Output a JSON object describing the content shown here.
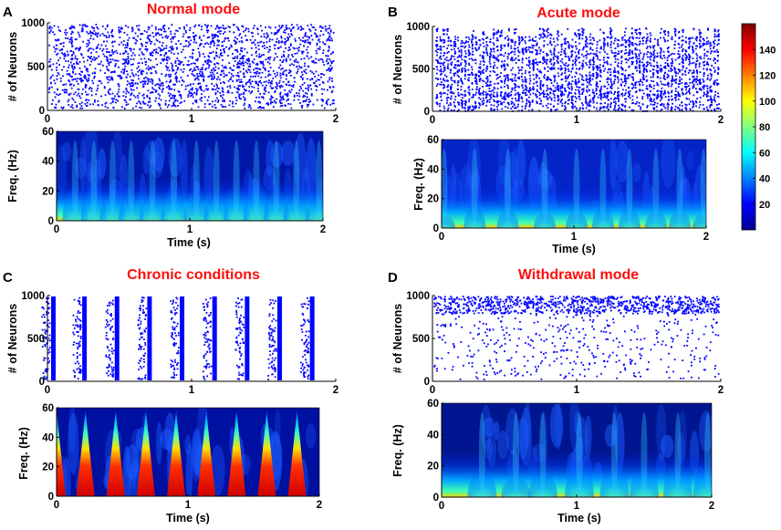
{
  "panels": [
    {
      "id": "A",
      "title": "Normal mode"
    },
    {
      "id": "B",
      "title": "Acute mode"
    },
    {
      "id": "C",
      "title": "Chronic conditions"
    },
    {
      "id": "D",
      "title": "Withdrawal mode"
    }
  ],
  "labels": {
    "raster_ylabel": "# of Neurons",
    "spectro_ylabel": "Freq. (Hz)",
    "xlabel": "Time (s)"
  },
  "colors": {
    "title": "#ff0d0d",
    "spike": "#0000ff",
    "axis": "#000000"
  },
  "chart_data": [
    {
      "type": "scatter",
      "panel": "A",
      "name": "raster",
      "x_range": [
        0,
        2
      ],
      "y_range": [
        0,
        1000
      ],
      "xticks": [
        "0",
        "1",
        "2"
      ],
      "yticks": [
        "0",
        "500",
        "1000"
      ],
      "ylabel": "# of Neurons",
      "pattern": "asynchronous"
    },
    {
      "type": "heatmap",
      "panel": "A",
      "name": "spectrogram",
      "x_range": [
        0,
        2
      ],
      "y_range": [
        0,
        60
      ],
      "xticks": [
        "0",
        "1",
        "2"
      ],
      "yticks": [
        "0",
        "20",
        "40",
        "60"
      ],
      "xlabel": "Time (s)",
      "ylabel": "Freq. (Hz)",
      "bursts_s": [
        0.14,
        0.28,
        0.42,
        0.56,
        0.72,
        0.88,
        1.05,
        1.2,
        1.35,
        1.5,
        1.65,
        1.8,
        1.97
      ]
    },
    {
      "type": "scatter",
      "panel": "B",
      "name": "raster",
      "x_range": [
        0,
        2
      ],
      "y_range": [
        0,
        1000
      ],
      "xticks": [
        "0",
        "1",
        "2"
      ],
      "yticks": [
        "0",
        "500",
        "1000"
      ],
      "ylabel": "# of Neurons",
      "pattern": "fast synchronous"
    },
    {
      "type": "heatmap",
      "panel": "B",
      "name": "spectrogram",
      "x_range": [
        0,
        2
      ],
      "y_range": [
        0,
        60
      ],
      "xticks": [
        "0",
        "1",
        "2"
      ],
      "yticks": [
        "0",
        "20",
        "40",
        "60"
      ],
      "xlabel": "Time (s)",
      "ylabel": "Freq. (Hz)",
      "bursts_s": [
        0.02,
        0.25,
        0.5,
        0.78,
        1.02,
        1.22,
        1.42,
        1.62,
        1.8,
        1.98
      ]
    },
    {
      "type": "scatter",
      "panel": "C",
      "name": "raster",
      "x_range": [
        0,
        2
      ],
      "y_range": [
        0,
        1000
      ],
      "xticks": [
        "0",
        "1",
        "2"
      ],
      "yticks": [
        "0",
        "500",
        "1000"
      ],
      "ylabel": "# of Neurons",
      "pattern": "periodic bursts",
      "bursts_s": [
        0.0,
        0.22,
        0.45,
        0.68,
        0.91,
        1.14,
        1.37,
        1.6,
        1.83
      ]
    },
    {
      "type": "heatmap",
      "panel": "C",
      "name": "spectrogram",
      "x_range": [
        0,
        2
      ],
      "y_range": [
        0,
        60
      ],
      "xticks": [
        "0",
        "1",
        "2"
      ],
      "yticks": [
        "0",
        "20",
        "40",
        "60"
      ],
      "xlabel": "Time (s)",
      "ylabel": "Freq. (Hz)",
      "bursts_s": [
        0.0,
        0.22,
        0.45,
        0.68,
        0.91,
        1.14,
        1.37,
        1.6,
        1.83
      ]
    },
    {
      "type": "scatter",
      "panel": "D",
      "name": "raster",
      "x_range": [
        0,
        2
      ],
      "y_range": [
        0,
        1000
      ],
      "xticks": [
        "0",
        "1",
        "2"
      ],
      "yticks": [
        "0",
        "500",
        "1000"
      ],
      "ylabel": "# of Neurons",
      "pattern": "dense top 800-1000, sparse below"
    },
    {
      "type": "heatmap",
      "panel": "D",
      "name": "spectrogram",
      "x_range": [
        0,
        2
      ],
      "y_range": [
        0,
        60
      ],
      "xticks": [
        "0",
        "1",
        "2"
      ],
      "yticks": [
        "0",
        "20",
        "40",
        "60"
      ],
      "xlabel": "Time (s)",
      "ylabel": "Freq. (Hz)",
      "bursts_s": [
        0.3,
        0.55,
        0.75,
        1.02,
        1.28,
        1.5,
        1.75,
        1.97
      ]
    },
    {
      "type": "colorbar",
      "name": "colorbar",
      "range": [
        0,
        160
      ],
      "ticks": [
        "20",
        "40",
        "60",
        "80",
        "100",
        "120",
        "140"
      ]
    }
  ]
}
